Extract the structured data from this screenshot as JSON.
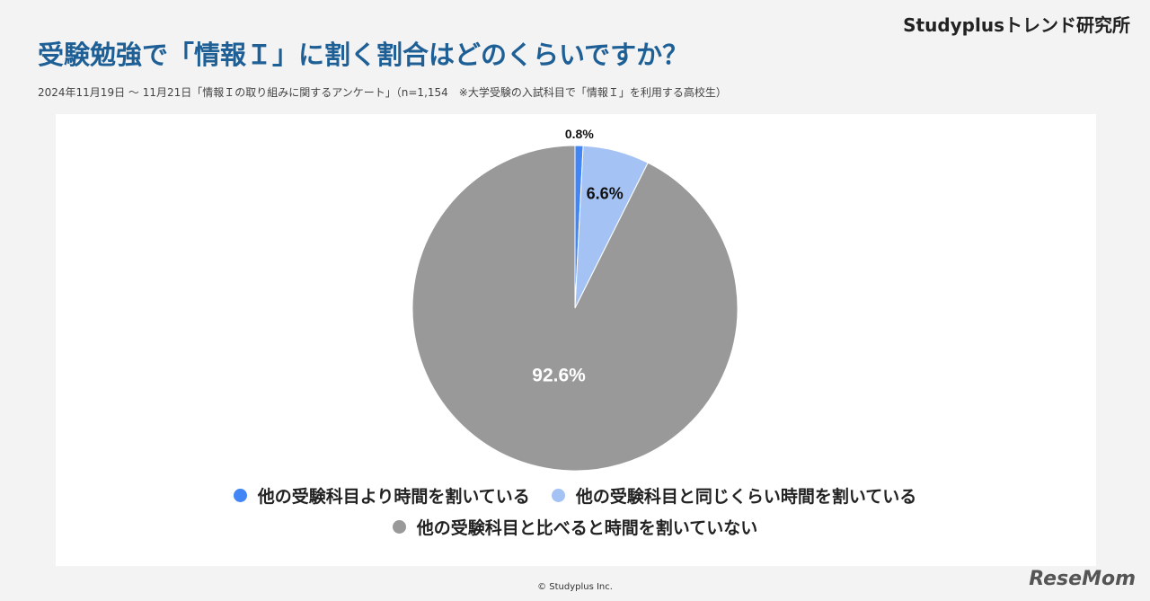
{
  "brand": "Studyplusトレンド研究所",
  "footer": "© Studyplus Inc.",
  "watermark": "ReseMom",
  "chart_data": {
    "type": "pie",
    "title": "受験勉強で「情報Ｉ」に割く割合はどのくらいですか？",
    "subtitle": "2024年11月19日 ～ 11月21日「情報Ｉの取り組みに関するアンケート」（n=1,154　※大学受験の入試科目で「情報Ｉ」を利用する高校生）",
    "categories": [
      "他の受験科目より時間を割いている",
      "他の受験科目と同じくらい時間を割いている",
      "他の受験科目と比べると時間を割いていない"
    ],
    "values": [
      0.8,
      6.6,
      92.6
    ],
    "value_labels": [
      "0.8%",
      "6.6%",
      "92.6%"
    ],
    "colors": [
      "#4285f4",
      "#a4c2f4",
      "#999999"
    ]
  }
}
